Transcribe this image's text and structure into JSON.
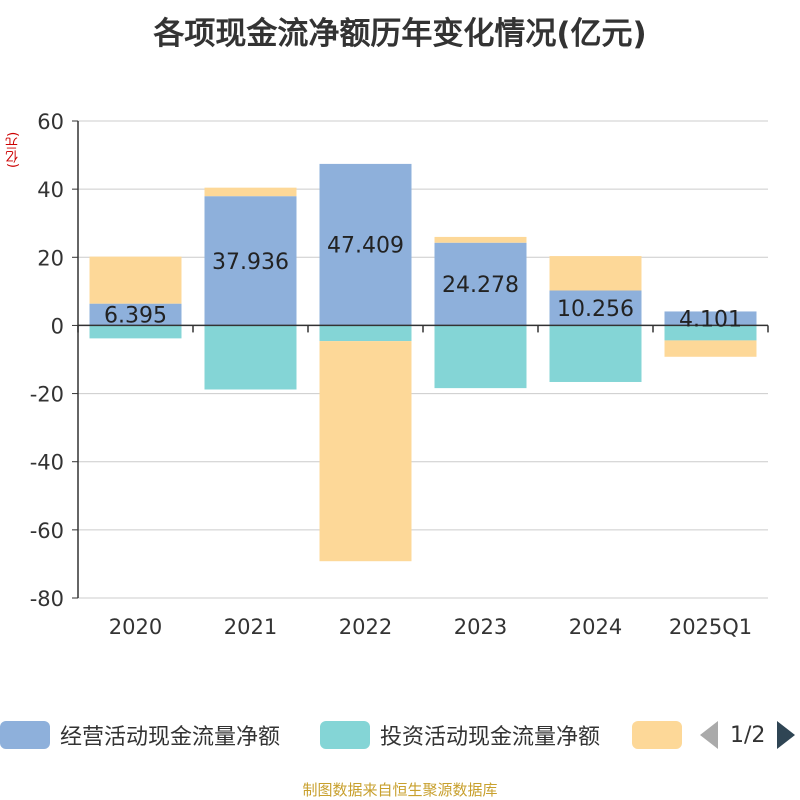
{
  "page": {
    "title": "各项现金流净额历年变化情况(亿元)",
    "unit": "(亿元)",
    "source": "制图数据来自恒生聚源数据库",
    "pager": "1/2"
  },
  "chart_data": {
    "type": "bar",
    "stacked": true,
    "categories": [
      "2020",
      "2021",
      "2022",
      "2023",
      "2024",
      "2025Q1"
    ],
    "ylim": [
      -80,
      60
    ],
    "yticks": [
      60,
      40,
      20,
      0,
      -20,
      -40,
      -60,
      -80
    ],
    "grid": true,
    "legend_position": "bottom",
    "series": [
      {
        "name": "经营活动现金流量净额",
        "color": "#8eb0db",
        "values": [
          6.395,
          37.936,
          47.409,
          24.278,
          10.256,
          4.101
        ],
        "labels": [
          "6.395",
          "37.936",
          "47.409",
          "24.278",
          "10.256",
          "4.101"
        ]
      },
      {
        "name": "投资活动现金流量净额",
        "color": "#84d5d6",
        "values": [
          -3.8,
          -18.8,
          -4.6,
          -18.4,
          -16.6,
          -4.4
        ],
        "labels": []
      },
      {
        "name": "",
        "color": "#fdd898",
        "values": [
          13.8,
          2.5,
          -64.6,
          1.7,
          10.1,
          -4.8
        ],
        "labels": []
      }
    ]
  }
}
